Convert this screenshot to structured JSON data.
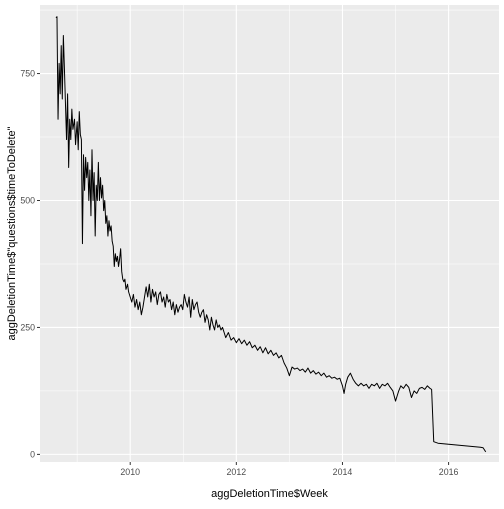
{
  "chart_data": {
    "type": "line",
    "title": "",
    "xlabel": "aggDeletionTime$Week",
    "ylabel": "aggDeletionTime$\"questions$timeToDelete\"",
    "xlim": [
      2008.3,
      2016.95
    ],
    "ylim": [
      -15,
      885
    ],
    "x_ticks": [
      2010,
      2012,
      2014,
      2016
    ],
    "x_tick_labels": [
      "2010",
      "2012",
      "2014",
      "2016"
    ],
    "y_ticks": [
      0,
      250,
      500,
      750
    ],
    "y_tick_labels": [
      "0",
      "250",
      "500",
      "750"
    ],
    "grid": true,
    "colors": {
      "panel": "#ebebeb",
      "grid": "#ffffff",
      "line": "#000000",
      "tick_text": "#4d4d4d"
    },
    "series": [
      {
        "values": [
          [
            2008.6,
            860
          ],
          [
            2008.62,
            862
          ],
          [
            2008.64,
            660
          ],
          [
            2008.66,
            770
          ],
          [
            2008.68,
            710
          ],
          [
            2008.7,
            805
          ],
          [
            2008.72,
            700
          ],
          [
            2008.74,
            825
          ],
          [
            2008.76,
            760
          ],
          [
            2008.78,
            690
          ],
          [
            2008.8,
            620
          ],
          [
            2008.82,
            710
          ],
          [
            2008.84,
            565
          ],
          [
            2008.86,
            660
          ],
          [
            2008.88,
            620
          ],
          [
            2008.9,
            680
          ],
          [
            2008.92,
            640
          ],
          [
            2008.95,
            660
          ],
          [
            2008.97,
            610
          ],
          [
            2009.0,
            655
          ],
          [
            2009.02,
            600
          ],
          [
            2009.04,
            675
          ],
          [
            2009.06,
            630
          ],
          [
            2009.08,
            620
          ],
          [
            2009.1,
            415
          ],
          [
            2009.12,
            590
          ],
          [
            2009.14,
            520
          ],
          [
            2009.16,
            585
          ],
          [
            2009.18,
            545
          ],
          [
            2009.2,
            575
          ],
          [
            2009.22,
            500
          ],
          [
            2009.24,
            560
          ],
          [
            2009.26,
            470
          ],
          [
            2009.28,
            600
          ],
          [
            2009.3,
            500
          ],
          [
            2009.32,
            555
          ],
          [
            2009.34,
            430
          ],
          [
            2009.36,
            530
          ],
          [
            2009.38,
            500
          ],
          [
            2009.4,
            575
          ],
          [
            2009.42,
            500
          ],
          [
            2009.44,
            545
          ],
          [
            2009.46,
            505
          ],
          [
            2009.48,
            530
          ],
          [
            2009.5,
            480
          ],
          [
            2009.52,
            500
          ],
          [
            2009.54,
            455
          ],
          [
            2009.56,
            470
          ],
          [
            2009.58,
            430
          ],
          [
            2009.6,
            460
          ],
          [
            2009.62,
            440
          ],
          [
            2009.64,
            450
          ],
          [
            2009.66,
            420
          ],
          [
            2009.68,
            410
          ],
          [
            2009.7,
            370
          ],
          [
            2009.72,
            395
          ],
          [
            2009.74,
            380
          ],
          [
            2009.76,
            390
          ],
          [
            2009.78,
            370
          ],
          [
            2009.8,
            385
          ],
          [
            2009.82,
            405
          ],
          [
            2009.84,
            360
          ],
          [
            2009.86,
            345
          ],
          [
            2009.88,
            340
          ],
          [
            2009.9,
            345
          ],
          [
            2009.92,
            325
          ],
          [
            2009.95,
            335
          ],
          [
            2009.97,
            320
          ],
          [
            2010.0,
            310
          ],
          [
            2010.03,
            300
          ],
          [
            2010.06,
            315
          ],
          [
            2010.09,
            290
          ],
          [
            2010.12,
            305
          ],
          [
            2010.15,
            285
          ],
          [
            2010.18,
            300
          ],
          [
            2010.21,
            275
          ],
          [
            2010.24,
            290
          ],
          [
            2010.27,
            310
          ],
          [
            2010.3,
            330
          ],
          [
            2010.33,
            310
          ],
          [
            2010.36,
            335
          ],
          [
            2010.39,
            300
          ],
          [
            2010.42,
            325
          ],
          [
            2010.45,
            310
          ],
          [
            2010.48,
            320
          ],
          [
            2010.51,
            295
          ],
          [
            2010.54,
            315
          ],
          [
            2010.57,
            320
          ],
          [
            2010.6,
            300
          ],
          [
            2010.63,
            310
          ],
          [
            2010.66,
            290
          ],
          [
            2010.69,
            315
          ],
          [
            2010.72,
            300
          ],
          [
            2010.75,
            305
          ],
          [
            2010.78,
            285
          ],
          [
            2010.81,
            300
          ],
          [
            2010.84,
            275
          ],
          [
            2010.87,
            295
          ],
          [
            2010.9,
            280
          ],
          [
            2010.93,
            290
          ],
          [
            2010.96,
            295
          ],
          [
            2010.99,
            285
          ],
          [
            2011.02,
            315
          ],
          [
            2011.05,
            300
          ],
          [
            2011.08,
            290
          ],
          [
            2011.11,
            310
          ],
          [
            2011.14,
            270
          ],
          [
            2011.17,
            305
          ],
          [
            2011.2,
            285
          ],
          [
            2011.23,
            295
          ],
          [
            2011.26,
            300
          ],
          [
            2011.29,
            280
          ],
          [
            2011.32,
            270
          ],
          [
            2011.35,
            280
          ],
          [
            2011.38,
            285
          ],
          [
            2011.41,
            260
          ],
          [
            2011.44,
            275
          ],
          [
            2011.47,
            265
          ],
          [
            2011.5,
            245
          ],
          [
            2011.53,
            270
          ],
          [
            2011.56,
            255
          ],
          [
            2011.59,
            245
          ],
          [
            2011.62,
            265
          ],
          [
            2011.65,
            250
          ],
          [
            2011.68,
            255
          ],
          [
            2011.71,
            245
          ],
          [
            2011.74,
            250
          ],
          [
            2011.77,
            240
          ],
          [
            2011.8,
            230
          ],
          [
            2011.85,
            240
          ],
          [
            2011.9,
            225
          ],
          [
            2011.95,
            230
          ],
          [
            2012.0,
            220
          ],
          [
            2012.05,
            228
          ],
          [
            2012.1,
            218
          ],
          [
            2012.15,
            225
          ],
          [
            2012.2,
            215
          ],
          [
            2012.25,
            222
          ],
          [
            2012.3,
            210
          ],
          [
            2012.35,
            215
          ],
          [
            2012.4,
            205
          ],
          [
            2012.45,
            212
          ],
          [
            2012.5,
            200
          ],
          [
            2012.55,
            210
          ],
          [
            2012.6,
            198
          ],
          [
            2012.65,
            205
          ],
          [
            2012.7,
            195
          ],
          [
            2012.75,
            200
          ],
          [
            2012.8,
            190
          ],
          [
            2012.85,
            195
          ],
          [
            2012.9,
            180
          ],
          [
            2012.95,
            170
          ],
          [
            2013.0,
            155
          ],
          [
            2013.05,
            172
          ],
          [
            2013.1,
            168
          ],
          [
            2013.15,
            170
          ],
          [
            2013.2,
            165
          ],
          [
            2013.25,
            168
          ],
          [
            2013.3,
            162
          ],
          [
            2013.35,
            170
          ],
          [
            2013.4,
            160
          ],
          [
            2013.45,
            165
          ],
          [
            2013.5,
            158
          ],
          [
            2013.55,
            162
          ],
          [
            2013.6,
            155
          ],
          [
            2013.65,
            160
          ],
          [
            2013.7,
            152
          ],
          [
            2013.75,
            155
          ],
          [
            2013.8,
            150
          ],
          [
            2013.85,
            152
          ],
          [
            2013.9,
            148
          ],
          [
            2013.95,
            150
          ],
          [
            2014.0,
            135
          ],
          [
            2014.03,
            120
          ],
          [
            2014.06,
            138
          ],
          [
            2014.1,
            152
          ],
          [
            2014.15,
            160
          ],
          [
            2014.2,
            148
          ],
          [
            2014.25,
            140
          ],
          [
            2014.3,
            135
          ],
          [
            2014.35,
            140
          ],
          [
            2014.4,
            135
          ],
          [
            2014.45,
            138
          ],
          [
            2014.5,
            130
          ],
          [
            2014.55,
            138
          ],
          [
            2014.6,
            135
          ],
          [
            2014.65,
            140
          ],
          [
            2014.7,
            130
          ],
          [
            2014.75,
            138
          ],
          [
            2014.8,
            135
          ],
          [
            2014.85,
            140
          ],
          [
            2014.9,
            132
          ],
          [
            2014.95,
            125
          ],
          [
            2015.0,
            105
          ],
          [
            2015.03,
            115
          ],
          [
            2015.06,
            125
          ],
          [
            2015.1,
            135
          ],
          [
            2015.15,
            130
          ],
          [
            2015.2,
            138
          ],
          [
            2015.25,
            132
          ],
          [
            2015.3,
            112
          ],
          [
            2015.35,
            125
          ],
          [
            2015.4,
            120
          ],
          [
            2015.45,
            130
          ],
          [
            2015.5,
            132
          ],
          [
            2015.55,
            128
          ],
          [
            2015.6,
            135
          ],
          [
            2015.65,
            130
          ],
          [
            2015.68,
            128
          ],
          [
            2015.72,
            25
          ],
          [
            2015.8,
            22
          ],
          [
            2015.9,
            21
          ],
          [
            2016.0,
            20
          ],
          [
            2016.1,
            19
          ],
          [
            2016.2,
            18
          ],
          [
            2016.3,
            17
          ],
          [
            2016.4,
            16
          ],
          [
            2016.5,
            15
          ],
          [
            2016.6,
            14
          ],
          [
            2016.65,
            13
          ],
          [
            2016.7,
            5
          ]
        ]
      }
    ]
  }
}
